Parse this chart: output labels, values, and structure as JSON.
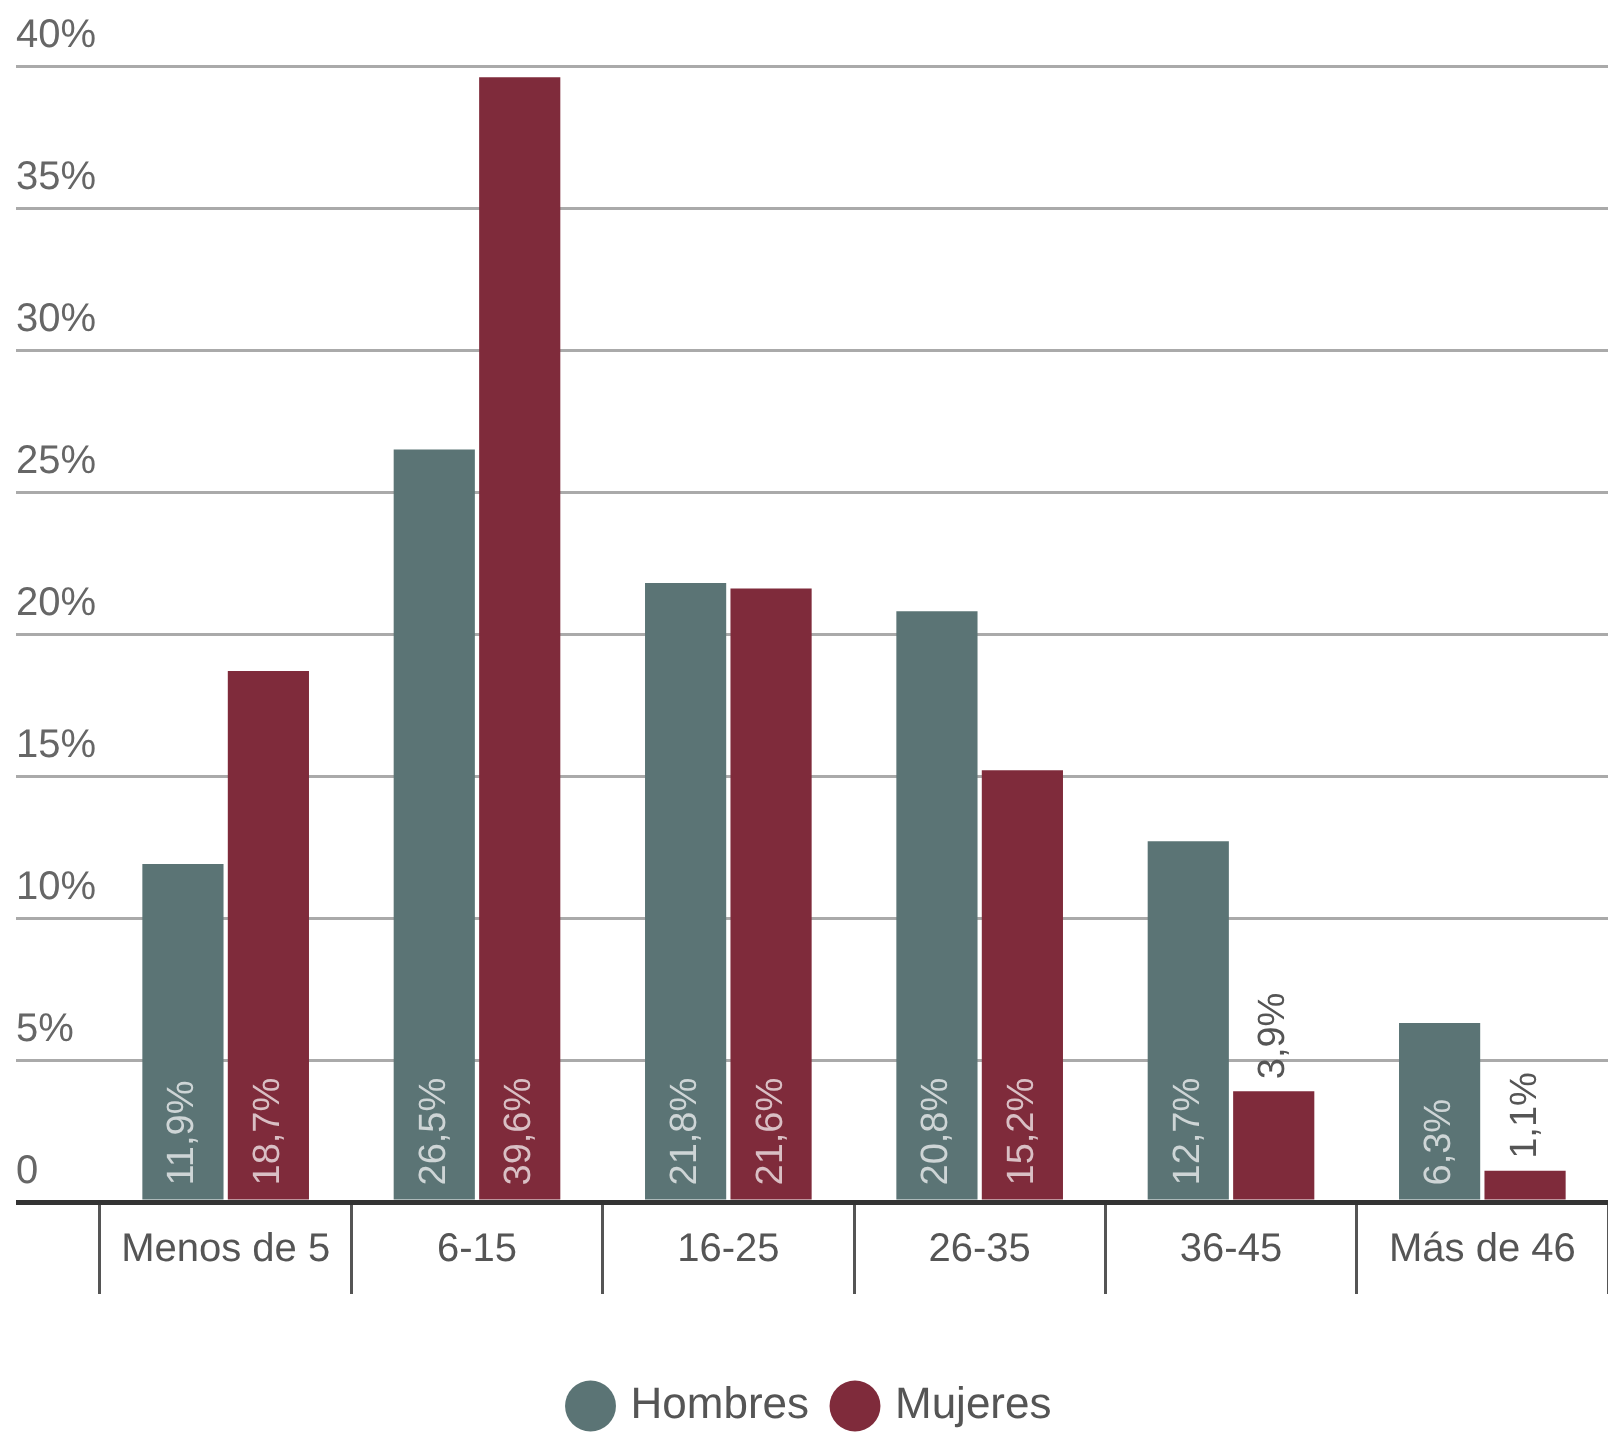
{
  "chart_data": {
    "type": "bar",
    "categories": [
      "Menos de 5",
      "6-15",
      "16-25",
      "26-35",
      "36-45",
      "Más de 46"
    ],
    "series": [
      {
        "name": "Hombres",
        "color": "#5b7475",
        "values": [
          11.9,
          26.5,
          21.8,
          20.8,
          12.7,
          6.3
        ],
        "value_labels": [
          "11,9%",
          "26,5%",
          "21,8%",
          "20,8%",
          "12,7%",
          "6,3%"
        ]
      },
      {
        "name": "Mujeres",
        "color": "#7f2b3b",
        "values": [
          18.7,
          39.6,
          21.6,
          15.2,
          3.9,
          1.1
        ],
        "value_labels": [
          "18,7%",
          "39,6%",
          "21,6%",
          "15,2%",
          "3,9%",
          "1,1%"
        ]
      }
    ],
    "ylim": [
      0,
      40
    ],
    "yticks": [
      0,
      {
        "value": 5,
        "label": "5%"
      },
      {
        "value": 10,
        "label": "10%"
      },
      {
        "value": 15,
        "label": "15%"
      },
      {
        "value": 20,
        "label": "20%"
      },
      {
        "value": 25,
        "label": "25%"
      },
      {
        "value": 30,
        "label": "30%"
      },
      {
        "value": 35,
        "label": "35%"
      },
      {
        "value": 40,
        "label": "40%"
      }
    ],
    "grid": "y",
    "legend": "bottom"
  }
}
